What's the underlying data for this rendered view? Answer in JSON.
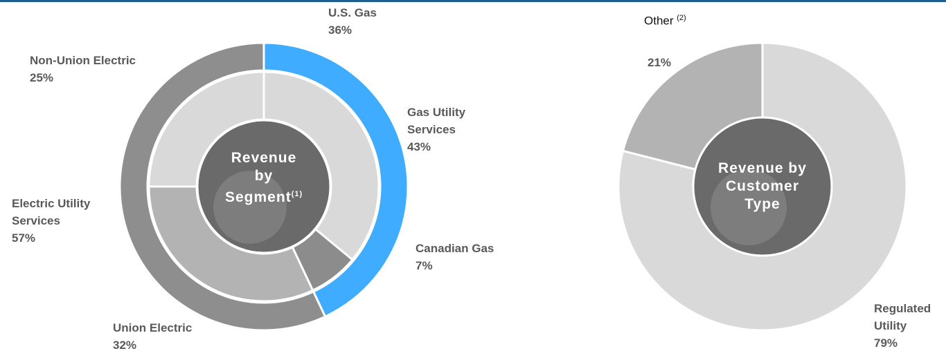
{
  "chart_data": [
    {
      "type": "donut",
      "title": "Revenue by Segment",
      "title_note": "(1)",
      "rings": [
        {
          "categories": [
            "Gas Utility Services",
            "Electric Utility Services"
          ],
          "values": [
            43,
            57
          ],
          "value_labels": [
            "43%",
            "57%"
          ],
          "colors": [
            "#40acff",
            "#8e8e8e"
          ]
        },
        {
          "categories": [
            "U.S. Gas",
            "Canadian Gas",
            "Union Electric",
            "Non-Union Electric"
          ],
          "values": [
            36,
            7,
            32,
            25
          ],
          "value_labels": [
            "36%",
            "7%",
            "32%",
            "25%"
          ],
          "colors": [
            "#d9d9d9",
            "#8c8c8c",
            "#b3b3b3",
            "#d9d9d9"
          ]
        }
      ]
    },
    {
      "type": "donut",
      "title": "Revenue by Customer Type",
      "rings": [
        {
          "categories": [
            "Regulated Utility",
            "Other"
          ],
          "category_notes": [
            null,
            "(2)"
          ],
          "values": [
            79,
            21
          ],
          "value_labels": [
            "79%",
            "21%"
          ],
          "colors": [
            "#d9d9d9",
            "#b3b3b3"
          ]
        }
      ]
    }
  ]
}
